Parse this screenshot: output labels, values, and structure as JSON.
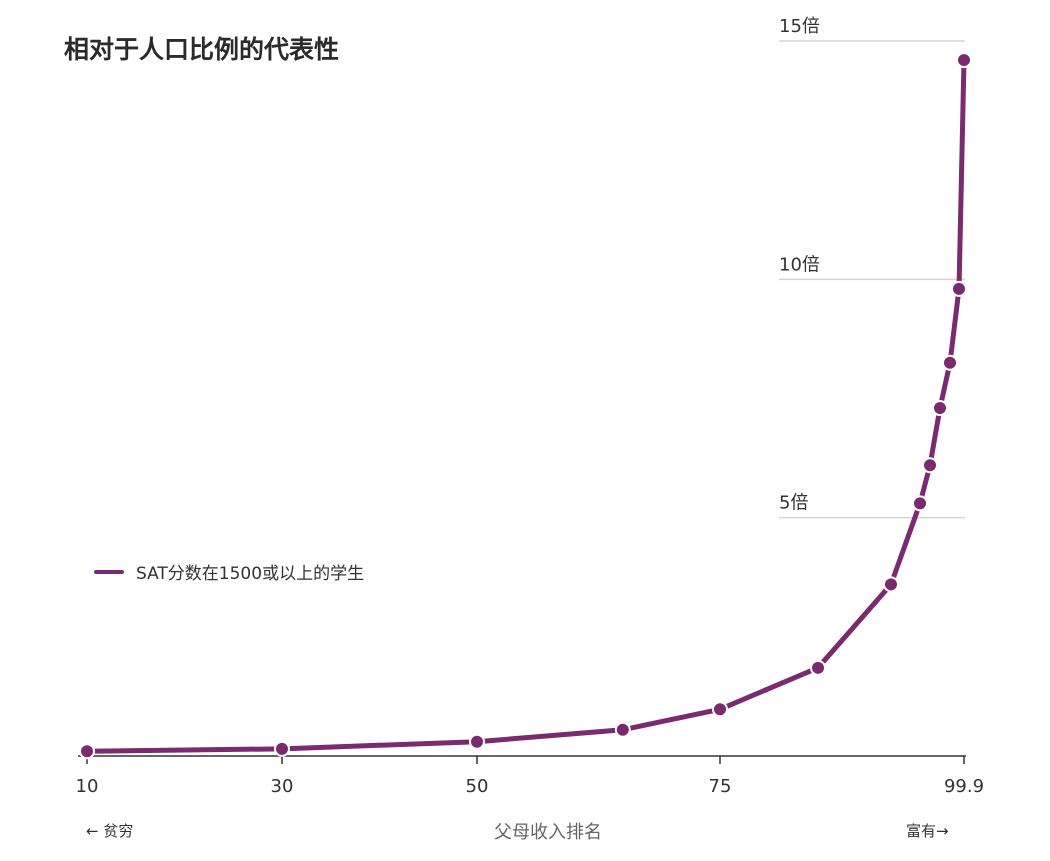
{
  "chart_data": {
    "type": "line",
    "title": "相对于人口比例的代表性",
    "xlabel": "父母收入排名",
    "x_hint_left": "← 贫穷",
    "x_hint_right": "富有→",
    "x_ticks": [
      "10",
      "30",
      "50",
      "75",
      "99.9"
    ],
    "y_ticks": [
      "5倍",
      "10倍",
      "15倍"
    ],
    "ylim": [
      0,
      15
    ],
    "grid": true,
    "legend_position": "left-middle",
    "series": [
      {
        "name": "SAT分数在1500或以上的学生",
        "color": "#7a2a6e",
        "x": [
          10,
          30,
          50,
          65,
          75,
          85,
          93,
          96,
          97,
          98,
          99,
          99.5,
          99.9
        ],
        "y": [
          0.1,
          0.15,
          0.3,
          0.55,
          0.98,
          1.85,
          3.6,
          5.3,
          6.1,
          7.3,
          8.25,
          9.8,
          14.6
        ]
      }
    ]
  }
}
